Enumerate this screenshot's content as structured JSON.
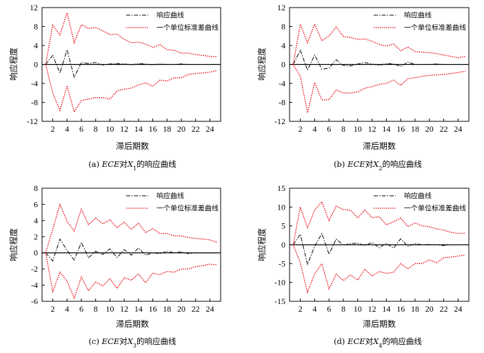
{
  "chart_data": [
    {
      "type": "line",
      "caption_prefix": "(a)",
      "caption_italic": "ECE",
      "caption_mid": "对",
      "caption_var": "X",
      "caption_sub": "1",
      "caption_suffix": "的响应曲线",
      "ylabel": "响应程度",
      "xlabel": "滞后期数",
      "ylim": [
        -12,
        12
      ],
      "yticks": [
        -12,
        -8,
        -4,
        0,
        4,
        8,
        12
      ],
      "xticks": [
        2,
        4,
        6,
        8,
        10,
        12,
        14,
        16,
        18,
        20,
        22,
        24
      ],
      "x": [
        1,
        2,
        3,
        4,
        5,
        6,
        7,
        8,
        9,
        10,
        11,
        12,
        13,
        14,
        15,
        16,
        17,
        18,
        19,
        20,
        21,
        22,
        23,
        24,
        25
      ],
      "series": [
        {
          "name": "响应曲线",
          "style": "dashdot",
          "color": "#000000",
          "values": [
            0.0,
            1.9,
            -1.8,
            3.1,
            -2.7,
            0.4,
            0.2,
            0.4,
            -0.1,
            0.1,
            0.2,
            0.1,
            -0.1,
            0.2,
            0.1,
            -0.1,
            0.1,
            0.0,
            0.0,
            0.1,
            0.0,
            0.0,
            0.0,
            0.0,
            0.0
          ]
        },
        {
          "name": "一个单位标准差曲线",
          "style": "dotted",
          "color": "#e8000b",
          "values": [
            0.0,
            8.3,
            6.2,
            10.9,
            4.6,
            8.4,
            7.6,
            7.8,
            7.1,
            6.3,
            6.4,
            5.3,
            4.6,
            4.7,
            4.3,
            3.6,
            4.2,
            3.1,
            3.0,
            2.4,
            2.4,
            2.1,
            1.9,
            1.7,
            1.6
          ]
        },
        {
          "name": "",
          "style": "dotted",
          "color": "#e8000b",
          "values": [
            0.0,
            -6.0,
            -9.7,
            -4.5,
            -10.0,
            -7.6,
            -7.3,
            -7.0,
            -7.0,
            -7.3,
            -5.6,
            -5.2,
            -5.0,
            -4.3,
            -3.9,
            -4.6,
            -3.3,
            -3.5,
            -2.8,
            -2.8,
            -2.1,
            -1.9,
            -1.8,
            -1.6,
            -1.3
          ]
        }
      ]
    },
    {
      "type": "line",
      "caption_prefix": "(b)",
      "caption_italic": "ECE",
      "caption_mid": "对",
      "caption_var": "X",
      "caption_sub": "2",
      "caption_suffix": "的响应曲线",
      "ylabel": "响应程度",
      "xlabel": "滞后期数",
      "ylim": [
        -12,
        12
      ],
      "yticks": [
        -12,
        -8,
        -4,
        0,
        4,
        8,
        12
      ],
      "xticks": [
        2,
        4,
        6,
        8,
        10,
        12,
        14,
        16,
        18,
        20,
        22,
        24
      ],
      "x": [
        1,
        2,
        3,
        4,
        5,
        6,
        7,
        8,
        9,
        10,
        11,
        12,
        13,
        14,
        15,
        16,
        17,
        18,
        19,
        20,
        21,
        22,
        23,
        24,
        25
      ],
      "series": [
        {
          "name": "响应曲线",
          "style": "dashdot",
          "color": "#000000",
          "values": [
            0.0,
            3.0,
            -1.2,
            2.0,
            -1.0,
            -0.8,
            1.0,
            -0.2,
            -0.3,
            0.1,
            0.4,
            0.1,
            -0.2,
            0.2,
            0.1,
            -0.4,
            0.5,
            0.0,
            0.0,
            0.0,
            0.1,
            0.0,
            0.0,
            0.0,
            0.0
          ]
        },
        {
          "name": "一个单位标准差曲线",
          "style": "dotted",
          "color": "#e8000b",
          "values": [
            0.0,
            8.5,
            4.6,
            8.5,
            5.0,
            6.0,
            7.9,
            5.9,
            5.7,
            5.3,
            5.4,
            4.9,
            4.2,
            3.9,
            4.3,
            2.9,
            3.7,
            2.7,
            2.6,
            2.5,
            2.3,
            2.0,
            1.7,
            1.4,
            1.7
          ]
        },
        {
          "name": "",
          "style": "dotted",
          "color": "#e8000b",
          "values": [
            0.0,
            -2.5,
            -10.2,
            -3.8,
            -7.5,
            -7.4,
            -5.4,
            -6.0,
            -6.0,
            -5.8,
            -5.0,
            -4.7,
            -4.2,
            -4.0,
            -3.3,
            -4.4,
            -3.0,
            -2.8,
            -2.5,
            -2.3,
            -2.2,
            -2.1,
            -1.9,
            -1.7,
            -1.4
          ]
        }
      ]
    },
    {
      "type": "line",
      "caption_prefix": "(c)",
      "caption_italic": "ECE",
      "caption_mid": "对",
      "caption_var": "X",
      "caption_sub": "3",
      "caption_suffix": "的响应曲线",
      "ylabel": "响应程度",
      "xlabel": "滞后期数",
      "ylim": [
        -6,
        8
      ],
      "yticks": [
        -6,
        -4,
        -2,
        0,
        2,
        4,
        6,
        8
      ],
      "xticks": [
        2,
        4,
        6,
        8,
        10,
        12,
        14,
        16,
        18,
        20,
        22,
        24
      ],
      "x": [
        1,
        2,
        3,
        4,
        5,
        6,
        7,
        8,
        9,
        10,
        11,
        12,
        13,
        14,
        15,
        16,
        17,
        18,
        19,
        20,
        21,
        22,
        23,
        24,
        25
      ],
      "series": [
        {
          "name": "响应曲线",
          "style": "dashdot",
          "color": "#000000",
          "values": [
            0.0,
            -1.0,
            1.7,
            0.3,
            -0.9,
            1.3,
            -0.6,
            0.2,
            -0.2,
            0.5,
            -0.6,
            0.4,
            -0.3,
            0.6,
            -0.3,
            0.0,
            -0.1,
            0.2,
            0.0,
            0.1,
            -0.1,
            0.0,
            0.0,
            0.0,
            0.0
          ]
        },
        {
          "name": "一个单位标准差曲线",
          "style": "dotted",
          "color": "#e8000b",
          "values": [
            0.0,
            2.9,
            6.0,
            3.9,
            2.7,
            5.4,
            3.5,
            4.3,
            3.6,
            4.1,
            3.1,
            3.8,
            2.9,
            3.7,
            2.5,
            3.0,
            2.4,
            2.4,
            2.1,
            2.1,
            1.9,
            1.8,
            1.7,
            1.6,
            1.3
          ]
        },
        {
          "name": "",
          "style": "dotted",
          "color": "#e8000b",
          "values": [
            0.0,
            -4.8,
            -2.4,
            -3.5,
            -5.6,
            -3.0,
            -4.7,
            -3.6,
            -4.1,
            -3.2,
            -4.4,
            -3.1,
            -3.4,
            -2.6,
            -3.7,
            -2.5,
            -2.7,
            -2.3,
            -2.4,
            -2.0,
            -2.0,
            -1.7,
            -1.6,
            -1.4,
            -1.5
          ]
        }
      ]
    },
    {
      "type": "line",
      "caption_prefix": "(d)",
      "caption_italic": "ECE",
      "caption_mid": "对",
      "caption_var": "X",
      "caption_sub": "4",
      "caption_suffix": "的响应曲线",
      "ylabel": "响应程度",
      "xlabel": "滞后期数",
      "ylim": [
        -15,
        15
      ],
      "yticks": [
        -15,
        -10,
        -5,
        0,
        5,
        10,
        15
      ],
      "xticks": [
        2,
        4,
        6,
        8,
        10,
        12,
        14,
        16,
        18,
        20,
        22,
        24
      ],
      "x": [
        1,
        2,
        3,
        4,
        5,
        6,
        7,
        8,
        9,
        10,
        11,
        12,
        13,
        14,
        15,
        16,
        17,
        18,
        19,
        20,
        21,
        22,
        23,
        24,
        25
      ],
      "series": [
        {
          "name": "响应曲线",
          "style": "dashdot",
          "color": "#000000",
          "values": [
            0.0,
            2.8,
            -5.2,
            -0.4,
            3.0,
            -2.5,
            1.5,
            -0.1,
            0.3,
            0.4,
            -0.2,
            0.6,
            -0.8,
            0.4,
            -0.9,
            1.6,
            -0.4,
            0.3,
            0.0,
            0.1,
            0.0,
            -0.2,
            0.0,
            0.0,
            0.0
          ]
        },
        {
          "name": "一个单位标准差曲线",
          "style": "dotted",
          "color": "#e8000b",
          "values": [
            0.0,
            10.0,
            4.5,
            9.2,
            11.4,
            6.4,
            10.3,
            9.3,
            9.2,
            7.1,
            9.2,
            7.2,
            7.4,
            5.3,
            6.1,
            7.1,
            4.8,
            5.8,
            5.0,
            4.8,
            4.2,
            3.9,
            3.3,
            3.0,
            3.1
          ]
        },
        {
          "name": "",
          "style": "dotted",
          "color": "#e8000b",
          "values": [
            0.0,
            -4.8,
            -12.6,
            -7.7,
            -5.0,
            -11.7,
            -7.8,
            -9.5,
            -8.0,
            -9.4,
            -6.5,
            -8.3,
            -7.1,
            -7.6,
            -7.3,
            -5.0,
            -6.4,
            -5.0,
            -5.0,
            -4.0,
            -4.8,
            -3.4,
            -3.3,
            -3.0,
            -2.7
          ]
        }
      ]
    }
  ]
}
